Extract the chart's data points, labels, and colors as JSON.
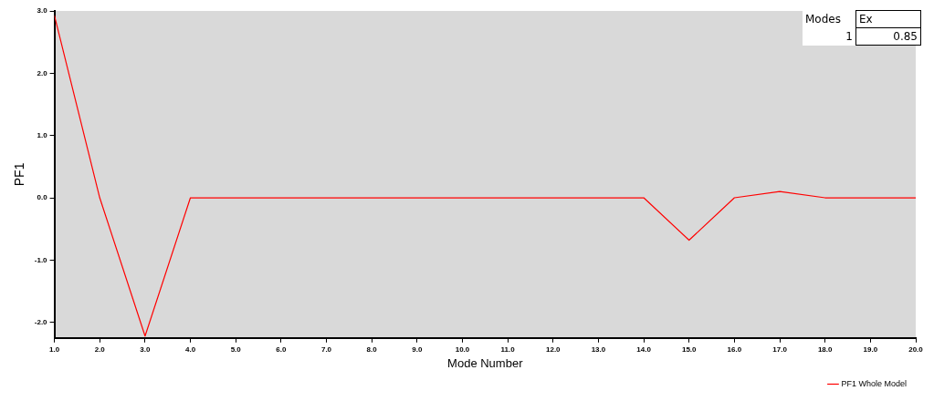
{
  "chart_data": {
    "type": "line",
    "xlabel": "Mode Number",
    "ylabel": "PF1",
    "x": [
      1,
      2,
      3,
      4,
      5,
      6,
      7,
      8,
      9,
      10,
      11,
      12,
      13,
      14,
      15,
      16,
      17,
      18,
      19,
      20
    ],
    "series": [
      {
        "name": "PF1 Whole Model",
        "color": "#ff0000",
        "values": [
          2.93,
          0,
          -2.22,
          0,
          0,
          0,
          0,
          0,
          0,
          0,
          0,
          0,
          0,
          0,
          -0.68,
          0,
          0.1,
          0,
          0,
          0
        ]
      }
    ],
    "xlim": [
      1,
      20
    ],
    "ylim": [
      -2.25,
      3
    ],
    "xticks": [
      {
        "value": 1,
        "label": "1.0"
      },
      {
        "value": 2,
        "label": "2.0"
      },
      {
        "value": 3,
        "label": "3.0"
      },
      {
        "value": 4,
        "label": "4.0"
      },
      {
        "value": 5,
        "label": "5.0"
      },
      {
        "value": 6,
        "label": "6.0"
      },
      {
        "value": 7,
        "label": "7.0"
      },
      {
        "value": 8,
        "label": "8.0"
      },
      {
        "value": 9,
        "label": "9.0"
      },
      {
        "value": 10,
        "label": "10.0"
      },
      {
        "value": 11,
        "label": "11.0"
      },
      {
        "value": 12,
        "label": "12.0"
      },
      {
        "value": 13,
        "label": "13.0"
      },
      {
        "value": 14,
        "label": "14.0"
      },
      {
        "value": 15,
        "label": "15.0"
      },
      {
        "value": 16,
        "label": "16.0"
      },
      {
        "value": 17,
        "label": "17.0"
      },
      {
        "value": 18,
        "label": "18.0"
      },
      {
        "value": 19,
        "label": "19.0"
      },
      {
        "value": 20,
        "label": "20.0"
      }
    ],
    "yticks": [
      {
        "value": -2,
        "label": "-2.0"
      },
      {
        "value": -1,
        "label": "-1.0"
      },
      {
        "value": 0,
        "label": "0.0"
      },
      {
        "value": 1,
        "label": "1.0"
      },
      {
        "value": 2,
        "label": "2.0"
      },
      {
        "value": 3,
        "label": "3.0"
      }
    ],
    "annotations": [
      "Modes",
      "Ex",
      "1",
      "0.85"
    ],
    "grid": false,
    "legend": "bottom right",
    "marker": "none",
    "line_style": "solid"
  }
}
